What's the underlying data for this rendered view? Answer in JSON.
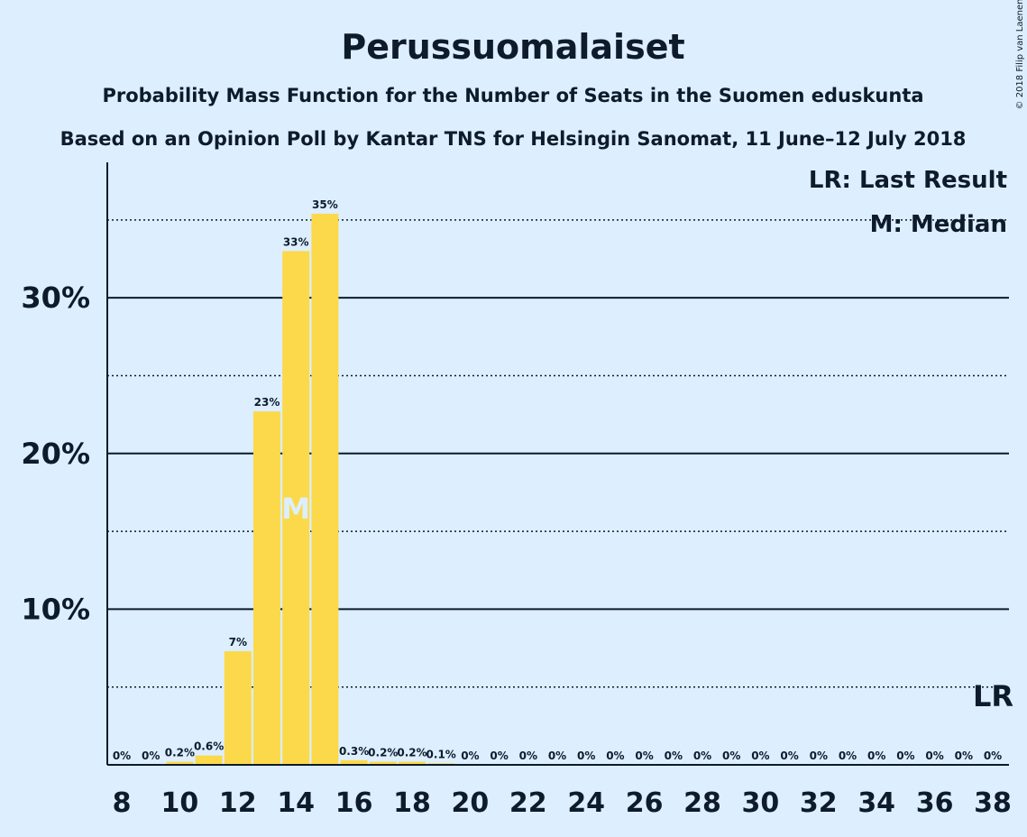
{
  "title": "Perussuomalaiset",
  "subtitle1": "Probability Mass Function for the Number of Seats in the Suomen eduskunta",
  "subtitle2": "Based on an Opinion Poll by Kantar TNS for Helsingin Sanomat, 11 June–12 July 2018",
  "copyright": "© 2018 Filip van Laenen",
  "legend": {
    "lr": "LR: Last Result",
    "median": "M: Median"
  },
  "markers": {
    "median_label": "M",
    "median_seat": 14,
    "lr_label": "LR",
    "lr_seat": 38
  },
  "colors": {
    "background": "#ddeeff",
    "bar": "#fbd94a",
    "text": "#0d1b2a"
  },
  "chart_data": {
    "type": "bar",
    "x": [
      8,
      9,
      10,
      11,
      12,
      13,
      14,
      15,
      16,
      17,
      18,
      19,
      20,
      21,
      22,
      23,
      24,
      25,
      26,
      27,
      28,
      29,
      30,
      31,
      32,
      33,
      34,
      35,
      36,
      37,
      38
    ],
    "values": [
      0,
      0,
      0.2,
      0.6,
      7.3,
      22.7,
      33.0,
      35.4,
      0.3,
      0.2,
      0.2,
      0.1,
      0,
      0,
      0,
      0,
      0,
      0,
      0,
      0,
      0,
      0,
      0,
      0,
      0,
      0,
      0,
      0,
      0,
      0,
      0
    ],
    "data_labels": [
      "0%",
      "0%",
      "0.2%",
      "0.6%",
      "7%",
      "23%",
      "33%",
      "35%",
      "0.3%",
      "0.2%",
      "0.2%",
      "0.1%",
      "0%",
      "0%",
      "0%",
      "0%",
      "0%",
      "0%",
      "0%",
      "0%",
      "0%",
      "0%",
      "0%",
      "0%",
      "0%",
      "0%",
      "0%",
      "0%",
      "0%",
      "0%",
      "0%"
    ],
    "x_tick_labels": [
      "8",
      "10",
      "12",
      "14",
      "16",
      "18",
      "20",
      "22",
      "24",
      "26",
      "28",
      "30",
      "32",
      "34",
      "36",
      "38"
    ],
    "y_ticks": [
      10,
      20,
      30
    ],
    "y_tick_labels": [
      "10%",
      "20%",
      "30%"
    ],
    "y_minor_gridlines": [
      5,
      15,
      25,
      35
    ],
    "ylim": [
      0,
      38.7
    ],
    "xlabel": "",
    "ylabel": "",
    "grid": true,
    "legend_position": "top-right"
  }
}
